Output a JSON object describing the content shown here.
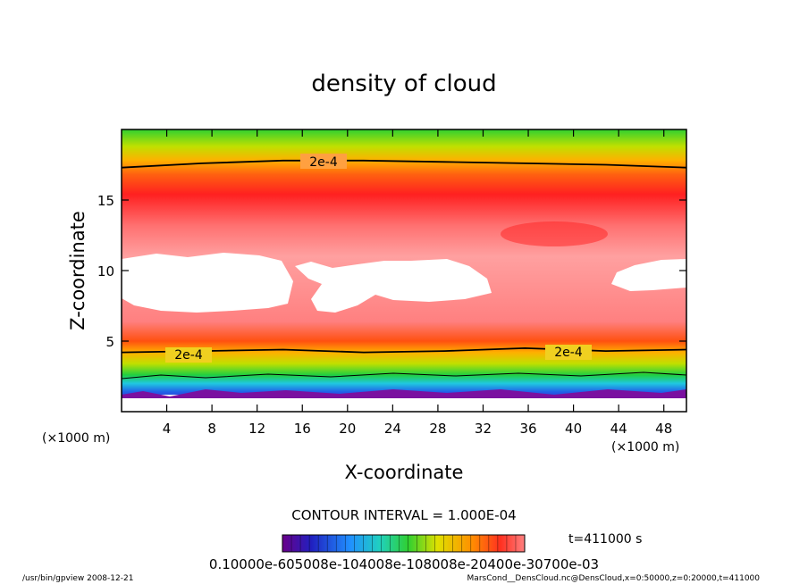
{
  "chart_data": {
    "type": "heatmap",
    "title": "density of cloud",
    "xlabel": "X-coordinate",
    "ylabel": "Z-coordinate",
    "x_unit": "(×1000 m)",
    "y_unit": "(×1000 m)",
    "xlim": [
      0,
      50
    ],
    "ylim": [
      0,
      20
    ],
    "x_ticks": [
      4,
      8,
      12,
      16,
      20,
      24,
      28,
      32,
      36,
      40,
      44,
      48
    ],
    "y_ticks": [
      5,
      10,
      15
    ],
    "contour_label": "2e-4",
    "contour_interval_text": "CONTOUR INTERVAL = 1.000E-04",
    "colorbar_labels": "0.10000e-605008e-104008e-108008e-20400e-30700e-03",
    "time_label": "t=411000 s",
    "footer_left": "/usr/bin/gpview   2008-12-21",
    "footer_right": "MarsCond__DensCloud.nc@DensCloud,x=0:50000,z=0:20000,t=411000",
    "upper_contour_z": [
      17.3,
      17.6,
      17.8,
      17.8,
      17.7,
      17.6,
      17.5,
      17.3
    ],
    "lower_contour_z": [
      4.2,
      4.3,
      4.4,
      4.2,
      4.3,
      4.5,
      4.3,
      4.4
    ]
  }
}
